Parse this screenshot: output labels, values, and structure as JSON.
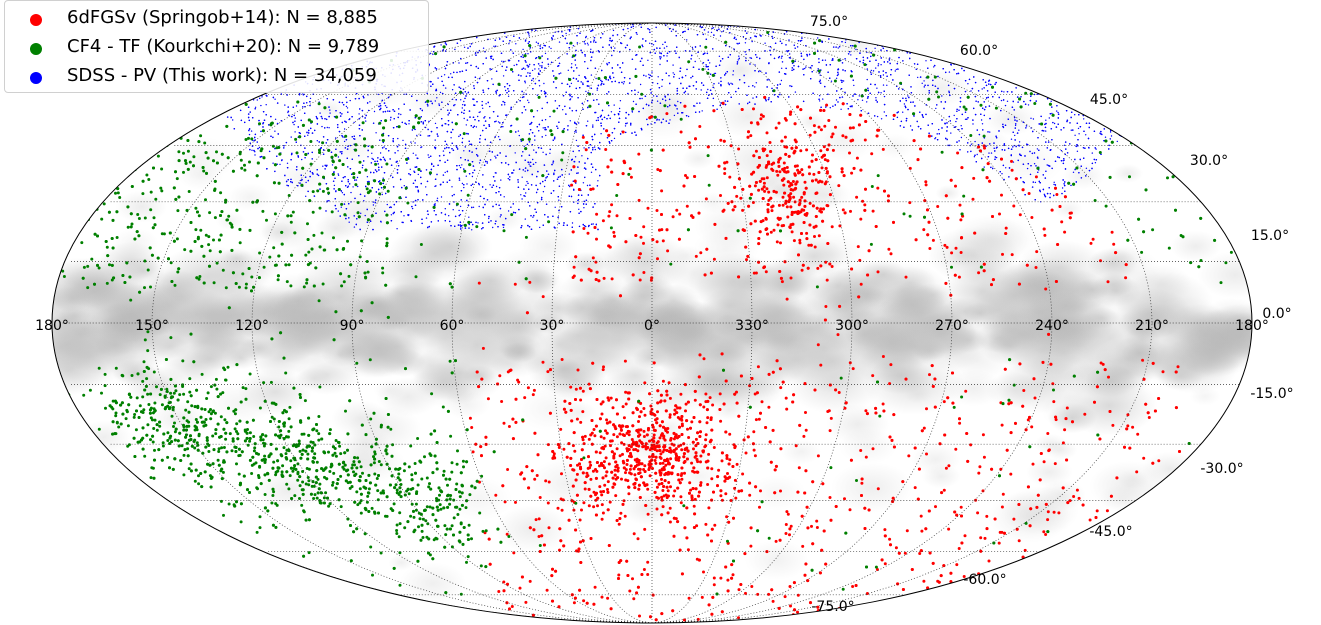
{
  "chart_data": {
    "type": "scatter",
    "projection": "mollweide",
    "frame": "galactic",
    "longitude_direction": "increasing-left",
    "grid": true,
    "legend_placement": "top-left",
    "background": "grayscale galactic dust / foreground map concentrated along the galactic plane",
    "x_tick_labels": [
      "180°",
      "150°",
      "120°",
      "90°",
      "60°",
      "30°",
      "0°",
      "330°",
      "300°",
      "270°",
      "240°",
      "210°",
      "180°"
    ],
    "y_tick_labels": [
      "75.0°",
      "60.0°",
      "45.0°",
      "30.0°",
      "15.0°",
      "0.0°",
      "-15.0°",
      "-30.0°",
      "-45.0°",
      "-60.0°",
      "-75.0°"
    ],
    "series": [
      {
        "name": "6dFGSv (Springob+14): N = 8,885",
        "color": "#ff0000",
        "count": 8885,
        "region": "southern equatorial sky (dec < 0), avoiding galactic plane"
      },
      {
        "name": "CF4 - TF (Kourkchi+20): N = 9,789",
        "color": "#008000",
        "count": 9789,
        "region": "all-sky, concentrated away from 6dF and SDSS footprints"
      },
      {
        "name": "SDSS - PV (This work): N = 34,059",
        "color": "#0000ff",
        "count": 34059,
        "region": "northern galactic cap, SDSS footprint"
      }
    ]
  }
}
